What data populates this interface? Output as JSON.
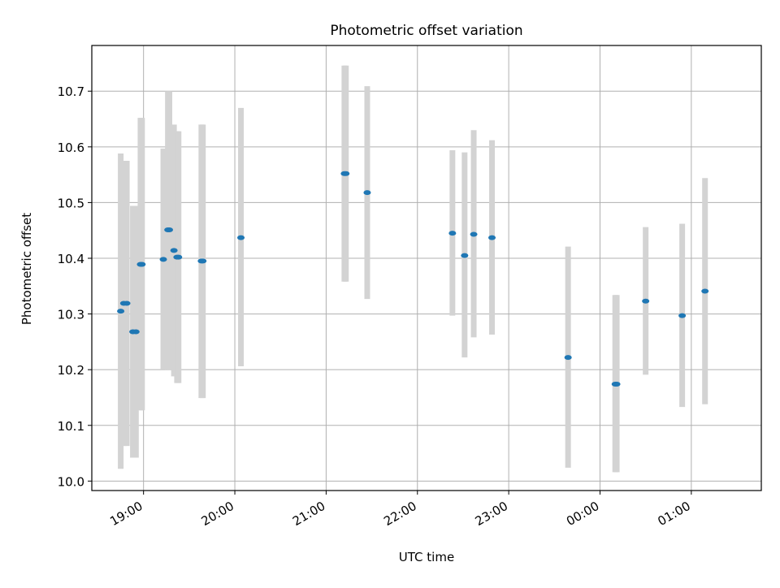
{
  "chart_data": {
    "type": "scatter",
    "title": "Photometric offset variation",
    "xlabel": "UTC time",
    "ylabel": "Photometric offset",
    "x_axis": "time",
    "xlim": [
      "18:26",
      "01:46"
    ],
    "ylim": [
      9.983,
      10.782
    ],
    "x_ticks": [
      "19:00",
      "20:00",
      "21:00",
      "22:00",
      "23:00",
      "00:00",
      "01:00"
    ],
    "y_ticks": [
      10.0,
      10.1,
      10.2,
      10.3,
      10.4,
      10.5,
      10.6,
      10.7
    ],
    "grid": true,
    "point_color": "#1f77b4",
    "errorbar_color": "#d3d3d3",
    "points": [
      {
        "x": "18:45",
        "y": 10.305,
        "y_low": 10.022,
        "y_high": 10.588
      },
      {
        "x": "18:47",
        "y": 10.319,
        "y_low": 10.063,
        "y_high": 10.575
      },
      {
        "x": "18:49",
        "y": 10.319,
        "y_low": 10.063,
        "y_high": 10.575
      },
      {
        "x": "18:53",
        "y": 10.268,
        "y_low": 10.042,
        "y_high": 10.494
      },
      {
        "x": "18:55",
        "y": 10.268,
        "y_low": 10.042,
        "y_high": 10.494
      },
      {
        "x": "18:58",
        "y": 10.389,
        "y_low": 10.127,
        "y_high": 10.652
      },
      {
        "x": "18:59",
        "y": 10.389,
        "y_low": 10.127,
        "y_high": 10.652
      },
      {
        "x": "19:13",
        "y": 10.398,
        "y_low": 10.2,
        "y_high": 10.597
      },
      {
        "x": "19:16",
        "y": 10.451,
        "y_low": 10.2,
        "y_high": 10.7
      },
      {
        "x": "19:17",
        "y": 10.451,
        "y_low": 10.2,
        "y_high": 10.7
      },
      {
        "x": "19:20",
        "y": 10.414,
        "y_low": 10.188,
        "y_high": 10.64
      },
      {
        "x": "19:22",
        "y": 10.402,
        "y_low": 10.176,
        "y_high": 10.628
      },
      {
        "x": "19:23",
        "y": 10.402,
        "y_low": 10.176,
        "y_high": 10.628
      },
      {
        "x": "19:38",
        "y": 10.395,
        "y_low": 10.149,
        "y_high": 10.64
      },
      {
        "x": "19:39",
        "y": 10.395,
        "y_low": 10.149,
        "y_high": 10.64
      },
      {
        "x": "20:04",
        "y": 10.437,
        "y_low": 10.206,
        "y_high": 10.67
      },
      {
        "x": "21:12",
        "y": 10.552,
        "y_low": 10.358,
        "y_high": 10.746
      },
      {
        "x": "21:13",
        "y": 10.552,
        "y_low": 10.358,
        "y_high": 10.746
      },
      {
        "x": "21:27",
        "y": 10.518,
        "y_low": 10.327,
        "y_high": 10.709
      },
      {
        "x": "22:23",
        "y": 10.445,
        "y_low": 10.297,
        "y_high": 10.594
      },
      {
        "x": "22:31",
        "y": 10.405,
        "y_low": 10.222,
        "y_high": 10.59
      },
      {
        "x": "22:37",
        "y": 10.443,
        "y_low": 10.258,
        "y_high": 10.63
      },
      {
        "x": "22:49",
        "y": 10.437,
        "y_low": 10.263,
        "y_high": 10.612
      },
      {
        "x": "23:39",
        "y": 10.222,
        "y_low": 10.024,
        "y_high": 10.421
      },
      {
        "x": "00:10",
        "y": 10.174,
        "y_low": 10.016,
        "y_high": 10.334
      },
      {
        "x": "00:11",
        "y": 10.174,
        "y_low": 10.016,
        "y_high": 10.334
      },
      {
        "x": "00:30",
        "y": 10.323,
        "y_low": 10.191,
        "y_high": 10.456
      },
      {
        "x": "00:54",
        "y": 10.297,
        "y_low": 10.133,
        "y_high": 10.462
      },
      {
        "x": "01:09",
        "y": 10.341,
        "y_low": 10.138,
        "y_high": 10.544
      }
    ]
  }
}
